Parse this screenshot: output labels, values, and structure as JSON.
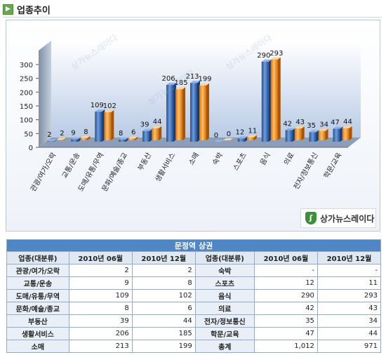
{
  "header": {
    "title": "업종추이"
  },
  "logo_text": "상가뉴스레이다",
  "watermark": "상가뉴스레이다",
  "colors": {
    "series_2010_06": "#2e5fa3",
    "series_2010_12": "#ef8a14",
    "table_header": "#4e86c6"
  },
  "chart_data": {
    "type": "bar",
    "title": "",
    "xlabel": "",
    "ylabel": "",
    "ylim": [
      0,
      300
    ],
    "yticks": [
      "0",
      "50",
      "100",
      "150",
      "200",
      "250",
      "300"
    ],
    "grid": false,
    "legend": "none",
    "categories": [
      "관광/여가/오락",
      "교통/운송",
      "도매/유통/무역",
      "문화/예술/종교",
      "부동산",
      "생활서비스",
      "소매",
      "숙박",
      "스포츠",
      "음식",
      "의료",
      "전자/정보통신",
      "학문/교육"
    ],
    "series": [
      {
        "values": [
          2,
          9,
          109,
          8,
          39,
          206,
          213,
          0,
          12,
          290,
          42,
          35,
          47
        ]
      },
      {
        "values": [
          2,
          8,
          102,
          6,
          44,
          185,
          199,
          0,
          11,
          293,
          43,
          34,
          44
        ]
      }
    ],
    "value_labels": [
      [
        "2",
        "9",
        "109",
        "8",
        "39",
        "206",
        "213",
        "0",
        "12",
        "290",
        "42",
        "35",
        "47"
      ],
      [
        "2",
        "8",
        "102",
        "6",
        "44",
        "185",
        "199",
        "0",
        "11",
        "293",
        "43",
        "34",
        "44"
      ]
    ]
  },
  "table": {
    "caption": "문정역 상권",
    "headers": [
      "업종(대분류)",
      "2010년 06월",
      "2010년 12월",
      "업종(대분류)",
      "2010년 06월",
      "2010년 12월"
    ],
    "rows": [
      [
        "관광/여가/오락",
        "2",
        "2",
        "숙박",
        "-",
        "-"
      ],
      [
        "교통/운송",
        "9",
        "8",
        "스포츠",
        "12",
        "11"
      ],
      [
        "도매/유통/무역",
        "109",
        "102",
        "음식",
        "290",
        "293"
      ],
      [
        "문화/예술/종교",
        "8",
        "6",
        "의료",
        "42",
        "43"
      ],
      [
        "부동산",
        "39",
        "44",
        "전자/정보통신",
        "35",
        "34"
      ],
      [
        "생활서비스",
        "206",
        "185",
        "학문/교육",
        "47",
        "44"
      ],
      [
        "소매",
        "213",
        "199",
        "총계",
        "1,012",
        "971"
      ]
    ]
  }
}
